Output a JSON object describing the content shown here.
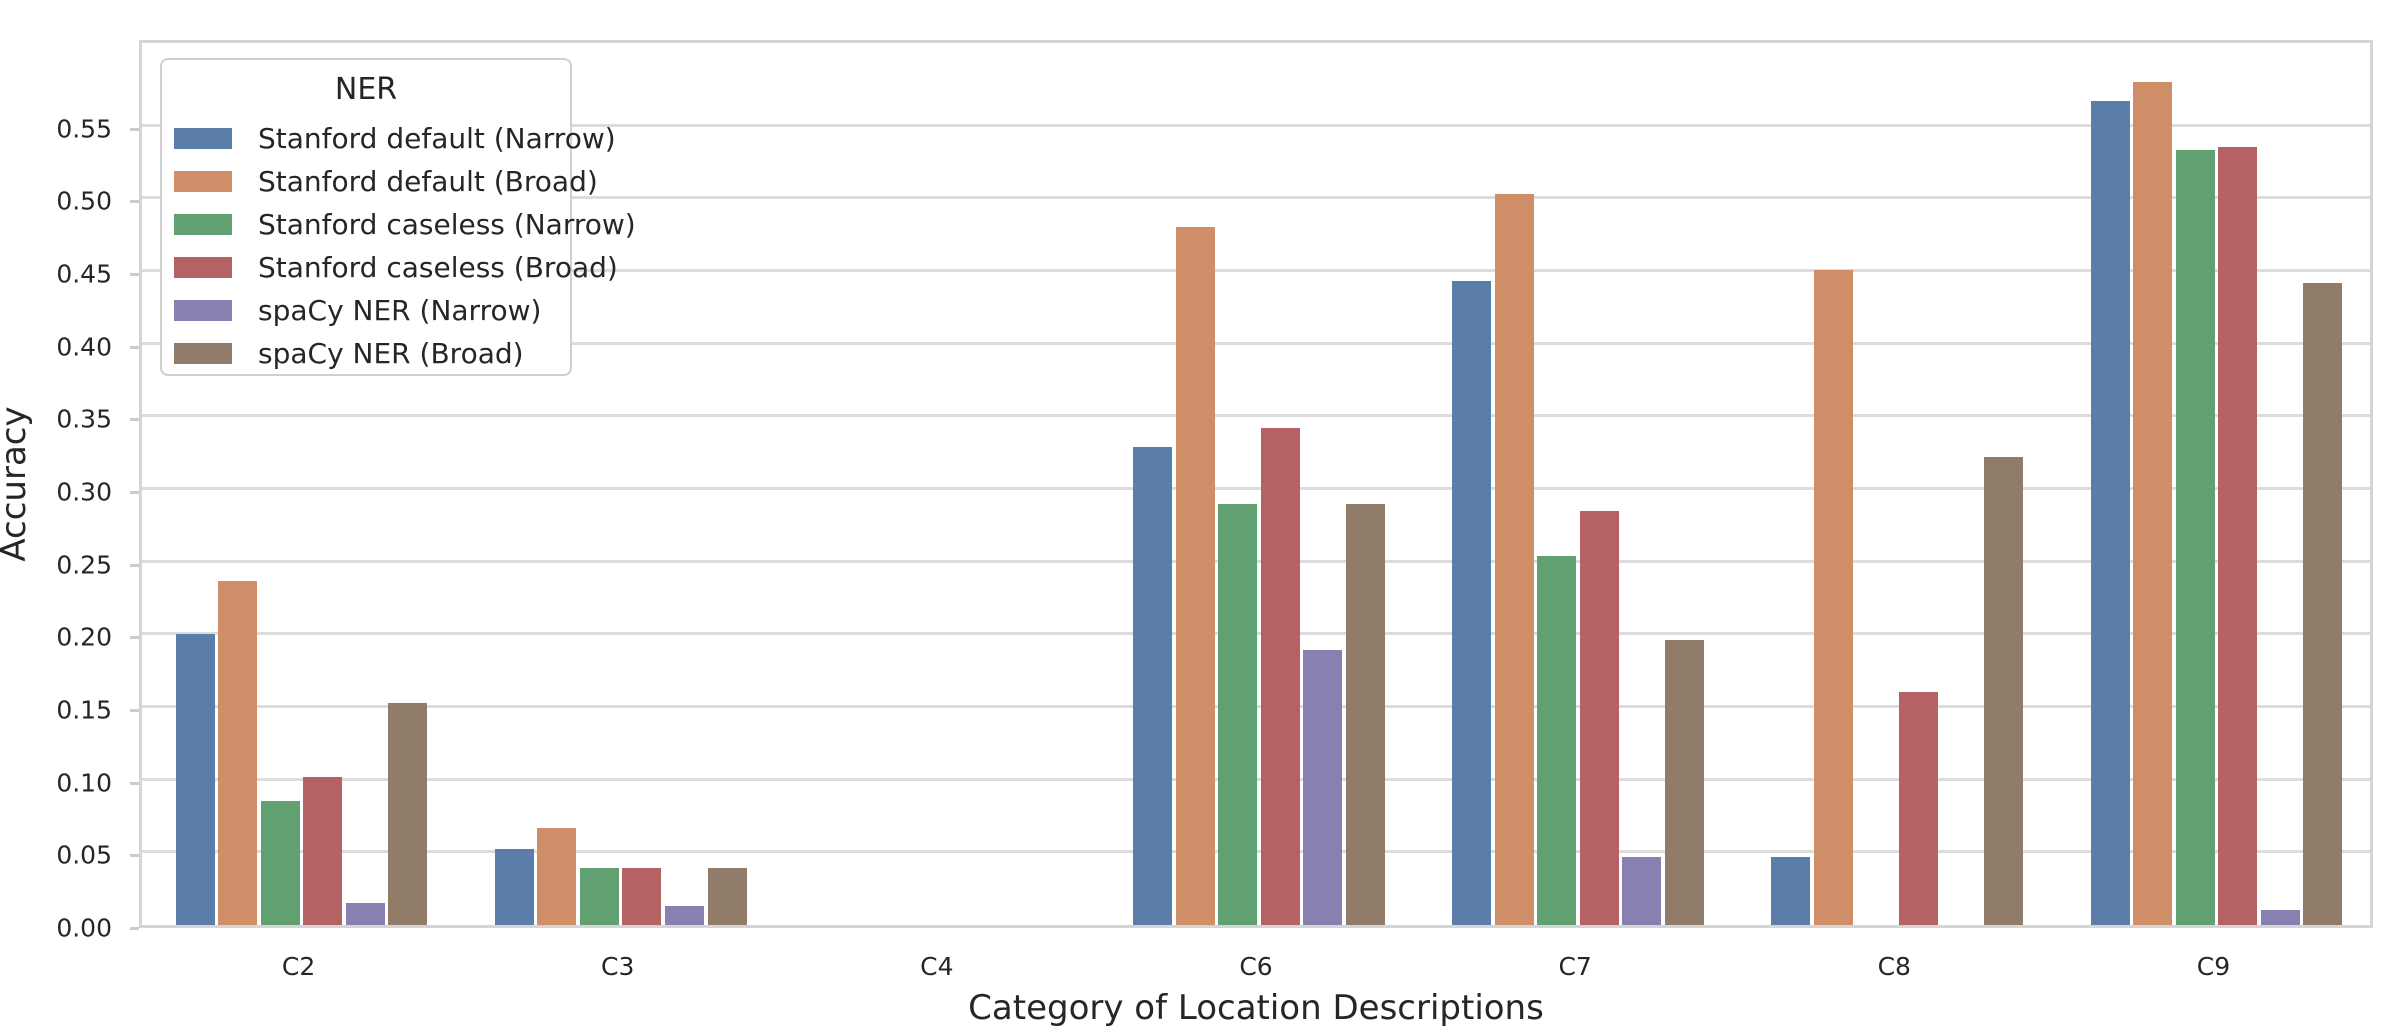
{
  "axes": {
    "ylabel": "Accuracy",
    "xlabel": "Category of Location Descriptions",
    "ytick_labels": [
      "0.00",
      "0.05",
      "0.10",
      "0.15",
      "0.20",
      "0.25",
      "0.30",
      "0.35",
      "0.40",
      "0.45",
      "0.50",
      "0.55"
    ]
  },
  "legend": {
    "title": "NER"
  },
  "chart_data": {
    "type": "bar",
    "title": "",
    "xlabel": "Category of Location Descriptions",
    "ylabel": "Accuracy",
    "ylim": [
      0,
      0.611
    ],
    "ytick_step": 0.05,
    "grid": true,
    "legend_position": "upper left",
    "legend_title": "NER",
    "categories": [
      "C2",
      "C3",
      "C4",
      "C6",
      "C7",
      "C8",
      "C9"
    ],
    "series": [
      {
        "name": "Stanford default (Narrow)",
        "color": "#5B7DA9",
        "values": [
          0.2,
          0.052,
          0,
          0.329,
          0.443,
          0.047,
          0.567
        ]
      },
      {
        "name": "Stanford default (Broad)",
        "color": "#CE8E67",
        "values": [
          0.237,
          0.067,
          0,
          0.48,
          0.503,
          0.451,
          0.58
        ]
      },
      {
        "name": "Stanford caseless (Narrow)",
        "color": "#61A171",
        "values": [
          0.085,
          0.039,
          0,
          0.29,
          0.254,
          0,
          0.533
        ]
      },
      {
        "name": "Stanford caseless (Broad)",
        "color": "#B56265",
        "values": [
          0.102,
          0.039,
          0,
          0.342,
          0.285,
          0.16,
          0.535
        ]
      },
      {
        "name": "spaCy NER (Narrow)",
        "color": "#8880B0",
        "values": [
          0.015,
          0.013,
          0,
          0.189,
          0.047,
          0,
          0.01
        ]
      },
      {
        "name": "spaCy NER (Broad)",
        "color": "#917C69",
        "values": [
          0.153,
          0.039,
          0,
          0.29,
          0.196,
          0.322,
          0.442
        ]
      }
    ]
  }
}
